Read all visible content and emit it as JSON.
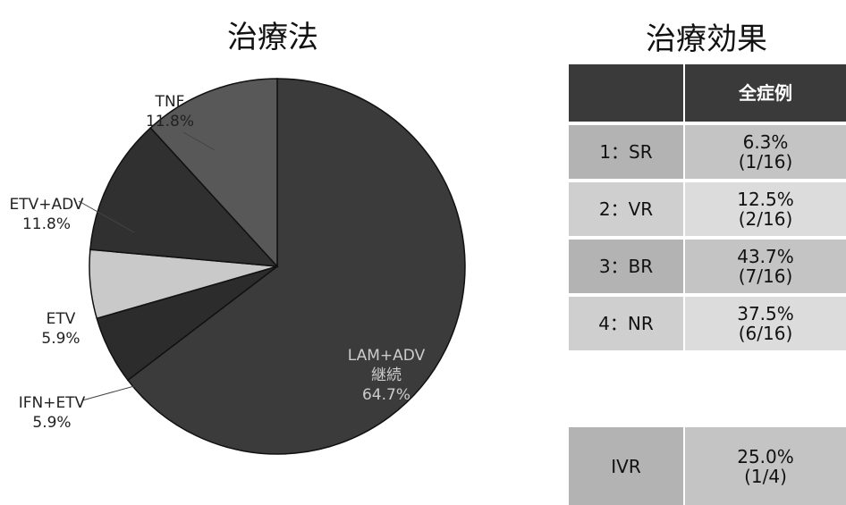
{
  "chart_data": {
    "type": "pie",
    "title": "治療法",
    "categories": [
      "LAM+ADV\n継続",
      "IFN+ETV",
      "ETV",
      "ETV+ADV",
      "TNF"
    ],
    "values": [
      64.7,
      5.9,
      5.9,
      11.8,
      11.8
    ],
    "value_labels": [
      "64.7%",
      "5.9%",
      "5.9%",
      "11.8%",
      "11.8%"
    ],
    "colors": [
      "#3b3b3b",
      "#2c2c2c",
      "#c9c9c9",
      "#303030",
      "#585858"
    ]
  },
  "table": {
    "title": "治療効果",
    "header": [
      "全症例"
    ],
    "rows": [
      [
        "1：SR",
        "6.3%",
        "(1/16)"
      ],
      [
        "2：VR",
        "12.5%",
        "(2/16)"
      ],
      [
        "3：BR",
        "43.7%",
        "(7/16)"
      ],
      [
        "4：NR",
        "37.5%",
        "(6/16)"
      ],
      [
        "IVR",
        "25.0%",
        "(1/4)"
      ]
    ]
  }
}
